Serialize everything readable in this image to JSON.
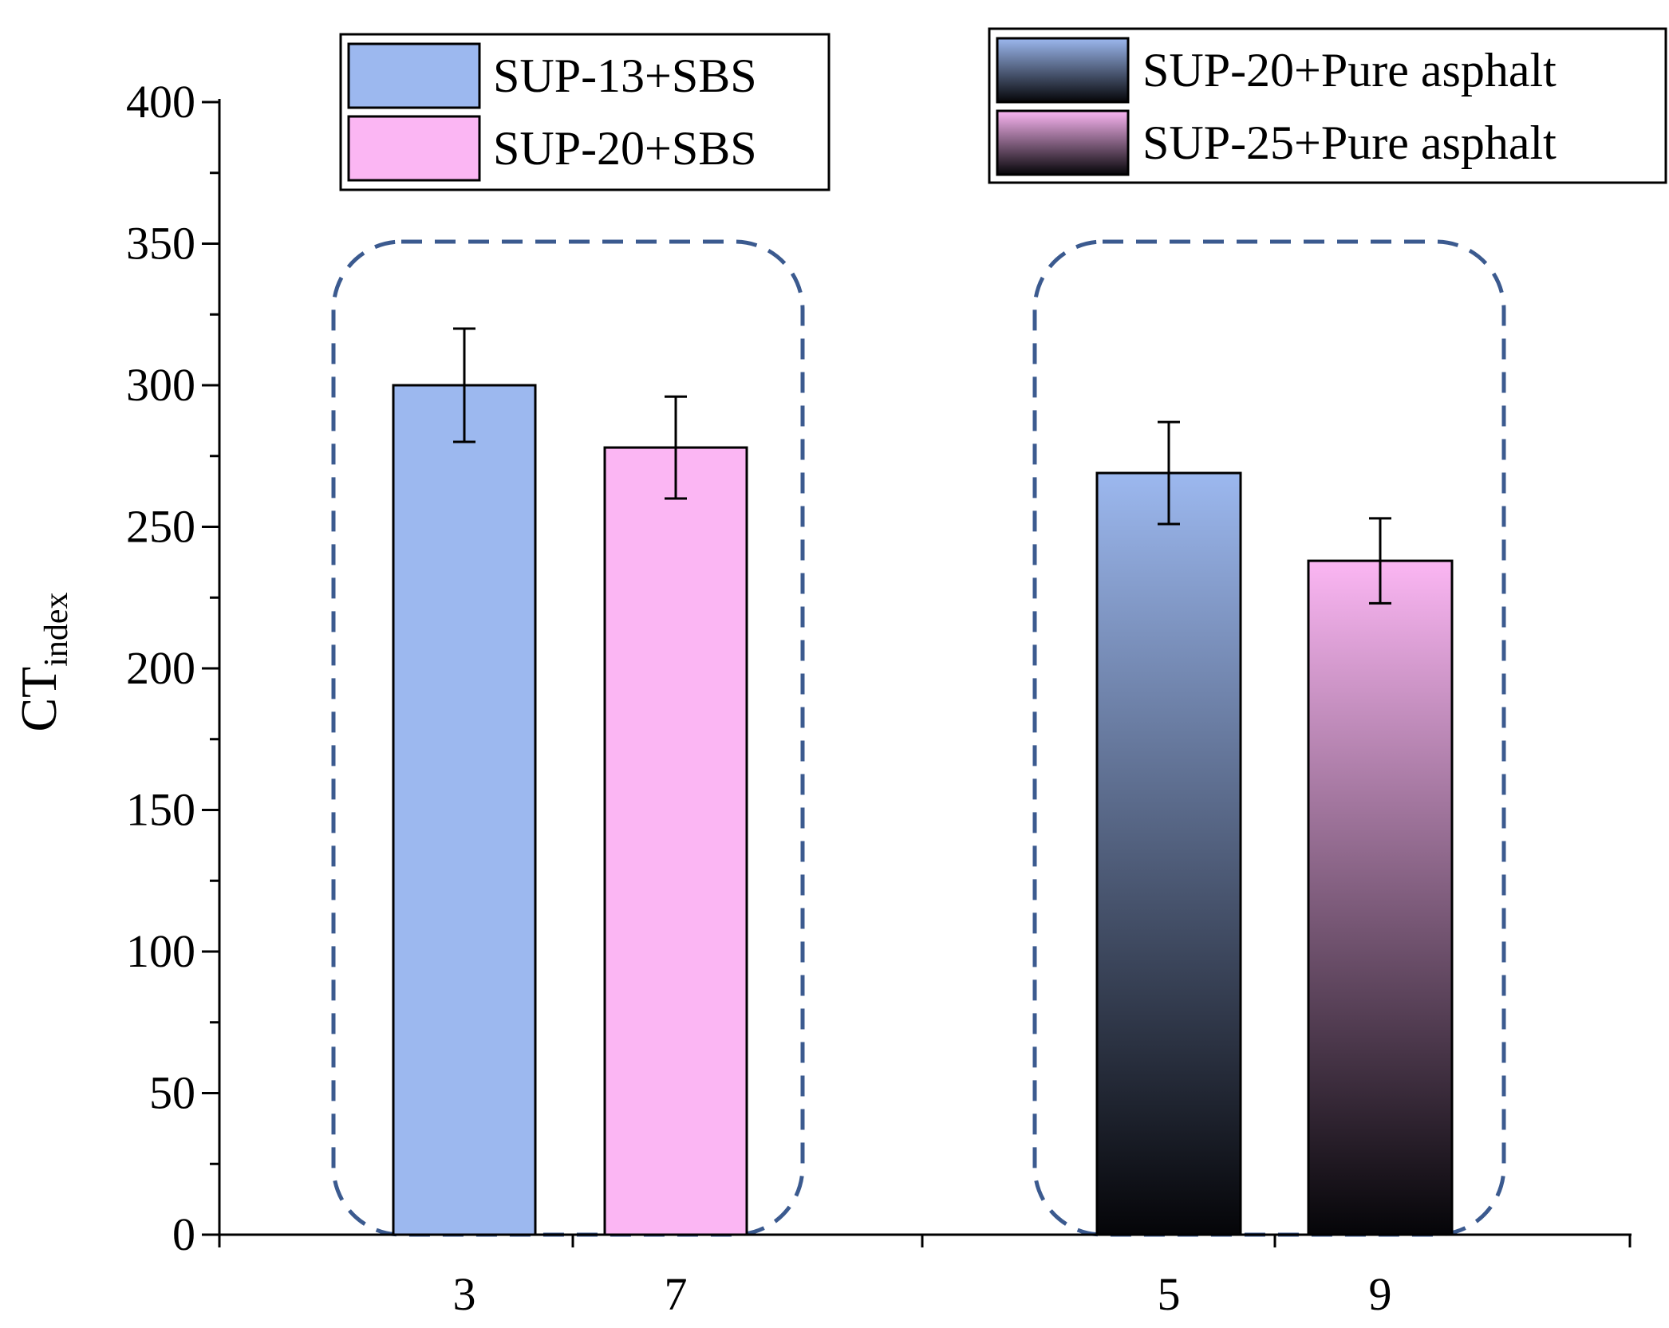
{
  "chart_data": {
    "type": "bar",
    "title": "",
    "xlabel": "",
    "ylabel": {
      "main": "CT",
      "subscript": "index"
    },
    "ylim": [
      0,
      400
    ],
    "y_ticks": [
      "0",
      "50",
      "100",
      "150",
      "200",
      "250",
      "300",
      "350",
      "400"
    ],
    "grid": false,
    "bars": [
      {
        "category": "3",
        "value": 300,
        "error": 20,
        "series": "SUP-13+SBS",
        "group": 1
      },
      {
        "category": "7",
        "value": 278,
        "error": 18,
        "series": "SUP-20+SBS",
        "group": 1
      },
      {
        "category": "5",
        "value": 269,
        "error": 18,
        "series": "SUP-20+Pure asphalt",
        "group": 2
      },
      {
        "category": "9",
        "value": 238,
        "error": 15,
        "series": "SUP-25+Pure asphalt",
        "group": 2
      }
    ],
    "legends": [
      {
        "placement": "top-left",
        "entries": [
          {
            "label": "SUP-13+SBS",
            "style": "solid-blue"
          },
          {
            "label": "SUP-20+SBS",
            "style": "solid-pink"
          }
        ]
      },
      {
        "placement": "top-right",
        "entries": [
          {
            "label": "SUP-20+Pure asphalt",
            "style": "gradient-blue"
          },
          {
            "label": "SUP-25+Pure asphalt",
            "style": "gradient-pink"
          }
        ]
      }
    ],
    "colors": {
      "blue": "#9cb8ef",
      "pink": "#fbb6f3",
      "dark": "#050508",
      "group_outline": "#3b5a8f",
      "axis": "#000000"
    }
  }
}
